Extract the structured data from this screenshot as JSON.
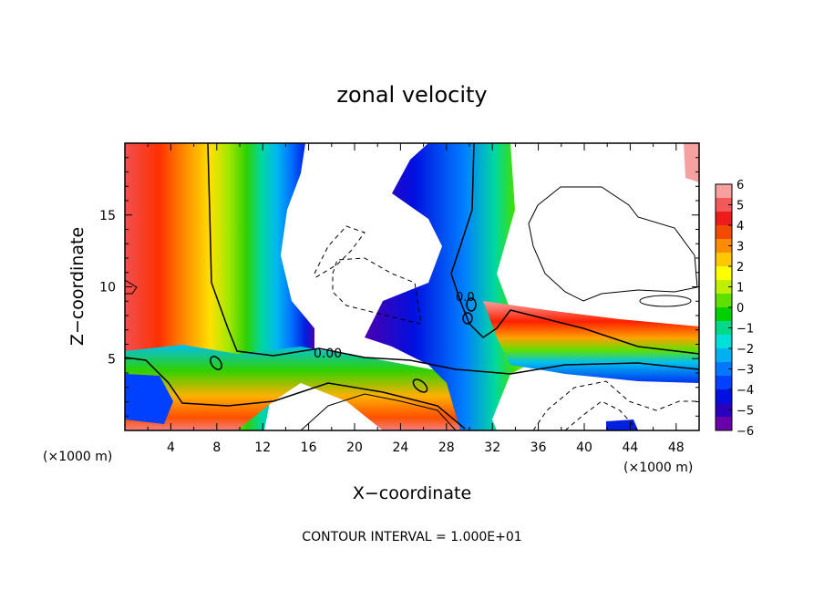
{
  "chart_data": {
    "type": "heatmap",
    "title": "zonal velocity",
    "xlabel": "X−coordinate",
    "ylabel": "Z−coordinate",
    "x_unit_label_left": "(×1000 m)",
    "x_unit_label_right": "(×1000 m)",
    "footer": "CONTOUR INTERVAL = 1.000E+01",
    "contour_label": "0.00",
    "contour_label_small": "0.0",
    "xlim": [
      0,
      50
    ],
    "ylim": [
      0,
      20
    ],
    "x_ticks": [
      "4",
      "8",
      "12",
      "16",
      "20",
      "24",
      "28",
      "32",
      "36",
      "40",
      "44",
      "48"
    ],
    "y_ticks": [
      "5",
      "10",
      "15"
    ],
    "colorbar": {
      "range": [
        -6,
        6
      ],
      "labels": [
        "6",
        "5",
        "4",
        "3",
        "2",
        "1",
        "0",
        "−1",
        "−2",
        "−3",
        "−4",
        "−5",
        "−6"
      ],
      "colors": [
        "#f7a0a0",
        "#f25a5a",
        "#ee1c1c",
        "#f24b00",
        "#ff8c00",
        "#ffc800",
        "#ffff00",
        "#c0f000",
        "#60e000",
        "#00d000",
        "#00d88a",
        "#00e0d8",
        "#00b0f0",
        "#0078ff",
        "#0040ff",
        "#0010e0",
        "#2a00c0",
        "#6a00a8"
      ]
    }
  }
}
